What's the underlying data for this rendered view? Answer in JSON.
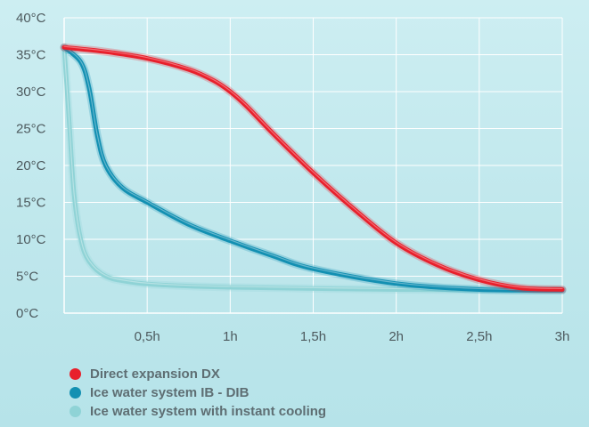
{
  "chart_data": {
    "type": "line",
    "title": "",
    "xlabel": "",
    "ylabel": "",
    "xlim": [
      0,
      3
    ],
    "ylim": [
      0,
      40
    ],
    "grid": true,
    "x_ticks": [
      {
        "value": 0.5,
        "label": "0,5h"
      },
      {
        "value": 1,
        "label": "1h"
      },
      {
        "value": 1.5,
        "label": "1,5h"
      },
      {
        "value": 2,
        "label": "2h"
      },
      {
        "value": 2.5,
        "label": "2,5h"
      },
      {
        "value": 3,
        "label": "3h"
      }
    ],
    "y_ticks": [
      {
        "value": 0,
        "label": "0°C"
      },
      {
        "value": 5,
        "label": "5°C"
      },
      {
        "value": 10,
        "label": "10°C"
      },
      {
        "value": 15,
        "label": "15°C"
      },
      {
        "value": 20,
        "label": "20°C"
      },
      {
        "value": 25,
        "label": "25°C"
      },
      {
        "value": 30,
        "label": "30°C"
      },
      {
        "value": 35,
        "label": "35°C"
      },
      {
        "value": 40,
        "label": "40°C"
      }
    ],
    "legend_position": "bottom-left",
    "series": [
      {
        "name": "Direct expansion DX",
        "color": "#e8202c",
        "x": [
          0,
          0.25,
          0.5,
          0.75,
          0.9,
          1.0,
          1.1,
          1.25,
          1.5,
          1.75,
          2.0,
          2.25,
          2.5,
          2.75,
          3.0
        ],
        "y": [
          36,
          35.4,
          34.5,
          33,
          31.5,
          30,
          28,
          24.5,
          19,
          14,
          9.5,
          6.5,
          4.5,
          3.4,
          3.2
        ]
      },
      {
        "name": "Ice water system IB - DIB",
        "color": "#1390b2",
        "x": [
          0,
          0.1,
          0.15,
          0.2,
          0.25,
          0.35,
          0.5,
          0.75,
          1.0,
          1.25,
          1.5,
          2.0,
          2.5,
          3.0
        ],
        "y": [
          36,
          34,
          30.5,
          24,
          20,
          17,
          15,
          12,
          9.8,
          7.8,
          6,
          4,
          3.2,
          3.1
        ]
      },
      {
        "name": "Ice water system with instant cooling",
        "color": "#8fd3d6",
        "x": [
          0,
          0.03,
          0.06,
          0.1,
          0.15,
          0.25,
          0.4,
          0.6,
          1.0,
          2.0,
          3.0
        ],
        "y": [
          36,
          26,
          16,
          10,
          7,
          5,
          4.2,
          3.8,
          3.5,
          3.2,
          3.1
        ]
      }
    ]
  }
}
